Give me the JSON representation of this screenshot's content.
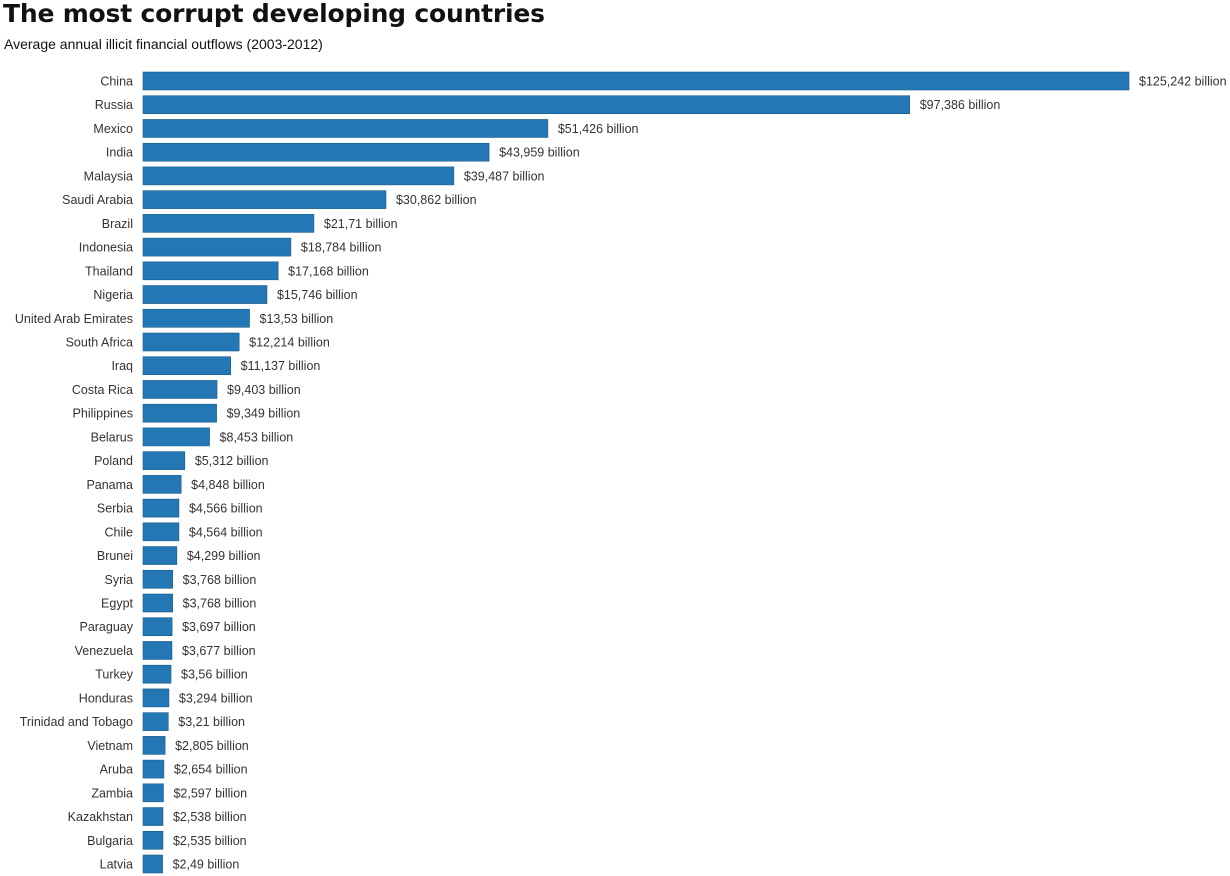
{
  "chart_data": {
    "type": "bar",
    "orientation": "horizontal",
    "title": "The most corrupt developing countries",
    "subtitle": "Average annual illicit financial outflows (2003-2012)",
    "value_unit_suffix": " billion",
    "value_prefix": "$",
    "xlim": [
      0,
      125.242
    ],
    "grid": false,
    "bar_color": "#2377b4",
    "categories": [
      "China",
      "Russia",
      "Mexico",
      "India",
      "Malaysia",
      "Saudi Arabia",
      "Brazil",
      "Indonesia",
      "Thailand",
      "Nigeria",
      "United Arab Emirates",
      "South Africa",
      "Iraq",
      "Costa Rica",
      "Philippines",
      "Belarus",
      "Poland",
      "Panama",
      "Serbia",
      "Chile",
      "Brunei",
      "Syria",
      "Egypt",
      "Paraguay",
      "Venezuela",
      "Turkey",
      "Honduras",
      "Trinidad and Tobago",
      "Vietnam",
      "Aruba",
      "Zambia",
      "Kazakhstan",
      "Bulgaria",
      "Latvia"
    ],
    "values": [
      125.242,
      97.386,
      51.426,
      43.959,
      39.487,
      30.862,
      21.71,
      18.784,
      17.168,
      15.746,
      13.53,
      12.214,
      11.137,
      9.403,
      9.349,
      8.453,
      5.312,
      4.848,
      4.566,
      4.564,
      4.299,
      3.768,
      3.768,
      3.697,
      3.677,
      3.56,
      3.294,
      3.21,
      2.805,
      2.654,
      2.597,
      2.538,
      2.535,
      2.49
    ],
    "value_labels": [
      "$125,242 billion",
      "$97,386 billion",
      "$51,426 billion",
      "$43,959 billion",
      "$39,487 billion",
      "$30,862 billion",
      "$21,71 billion",
      "$18,784 billion",
      "$17,168 billion",
      "$15,746 billion",
      "$13,53 billion",
      "$12,214 billion",
      "$11,137 billion",
      "$9,403 billion",
      "$9,349 billion",
      "$8,453 billion",
      "$5,312 billion",
      "$4,848 billion",
      "$4,566 billion",
      "$4,564 billion",
      "$4,299 billion",
      "$3,768 billion",
      "$3,768 billion",
      "$3,697 billion",
      "$3,677 billion",
      "$3,56 billion",
      "$3,294 billion",
      "$3,21 billion",
      "$2,805 billion",
      "$2,654 billion",
      "$2,597 billion",
      "$2,538 billion",
      "$2,535 billion",
      "$2,49 billion"
    ]
  }
}
